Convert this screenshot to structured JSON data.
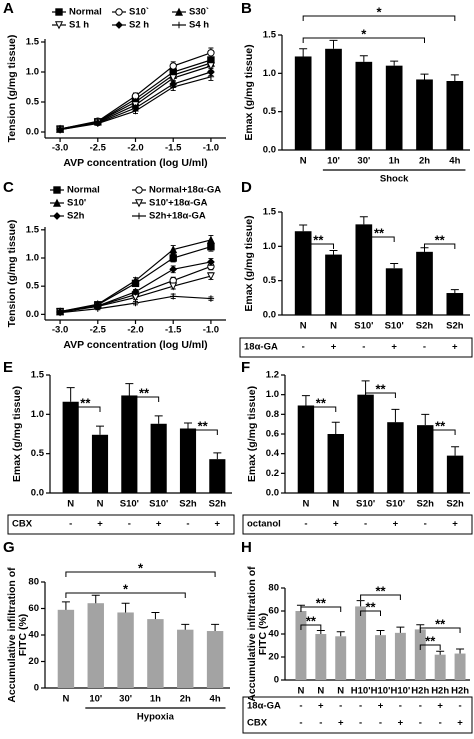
{
  "chart_data": [
    {
      "panel": "A",
      "type": "line",
      "xlabel": "AVP concentration (log U/ml)",
      "ylabel": "Tension (g/mg tissue)",
      "x": [
        -3,
        -2.5,
        -2,
        -1.5,
        -1
      ],
      "xlim": [
        -3.2,
        -0.8
      ],
      "xticks": [
        {
          "value": -3,
          "label": "-3.0"
        },
        -2.5,
        {
          "value": -2,
          "label": "-2.0"
        },
        -1.5,
        {
          "value": -1,
          "label": "-1.0"
        }
      ],
      "ylim": [
        -0.1,
        1.55
      ],
      "yticks": [
        {
          "value": 0,
          "label": "0.0"
        },
        0.5,
        {
          "value": 1,
          "label": "1.0"
        },
        1.5
      ],
      "series": [
        {
          "name": "Normal",
          "color": "#000000",
          "marker": "square",
          "values": [
            0.05,
            0.17,
            0.55,
            1.0,
            1.2
          ],
          "errors": [
            0.02,
            0.03,
            0.05,
            0.07,
            0.08
          ]
        },
        {
          "name": "S10`",
          "color": "#000000",
          "marker": "circle-open",
          "values": [
            0.05,
            0.18,
            0.6,
            1.1,
            1.32
          ],
          "errors": [
            0.02,
            0.03,
            0.05,
            0.07,
            0.08
          ]
        },
        {
          "name": "S30`",
          "color": "#000000",
          "marker": "triangle",
          "values": [
            0.05,
            0.17,
            0.5,
            0.95,
            1.15
          ],
          "errors": [
            0.02,
            0.03,
            0.05,
            0.06,
            0.07
          ]
        },
        {
          "name": "S1 h",
          "color": "#000000",
          "marker": "tri-down-open",
          "values": [
            0.04,
            0.16,
            0.45,
            0.9,
            1.1
          ],
          "errors": [
            0.02,
            0.03,
            0.05,
            0.06,
            0.07
          ]
        },
        {
          "name": "S2 h",
          "color": "#000000",
          "marker": "diamond",
          "values": [
            0.04,
            0.15,
            0.4,
            0.8,
            1.0
          ],
          "errors": [
            0.02,
            0.03,
            0.04,
            0.06,
            0.06
          ]
        },
        {
          "name": "S4 h",
          "color": "#000000",
          "marker": "plus",
          "values": [
            0.04,
            0.14,
            0.35,
            0.75,
            0.92
          ],
          "errors": [
            0.02,
            0.03,
            0.04,
            0.06,
            0.06
          ]
        }
      ]
    },
    {
      "panel": "B",
      "type": "bar",
      "ylabel": "Emax (g/mg tissue)",
      "xlabel": "Shock",
      "color": "#000000",
      "categories": [
        "N",
        "10'",
        "30'",
        "1h",
        "2h",
        "4h"
      ],
      "values": [
        1.22,
        1.32,
        1.15,
        1.1,
        0.92,
        0.9
      ],
      "errors": [
        0.1,
        0.11,
        0.08,
        0.06,
        0.07,
        0.08
      ],
      "ylim": [
        0,
        1.5
      ],
      "yticks": [
        {
          "value": 0,
          "label": "0.0"
        },
        0.5,
        {
          "value": 1,
          "label": "1.0"
        },
        1.5
      ],
      "annotations": [
        "*",
        "*"
      ]
    },
    {
      "panel": "C",
      "type": "line",
      "xlabel": "AVP concentration (log U/ml)",
      "ylabel": "Tension (g/mg tissue)",
      "x": [
        -3,
        -2.5,
        -2,
        -1.5,
        -1
      ],
      "xlim": [
        -3.2,
        -0.8
      ],
      "xticks": [
        {
          "value": -3,
          "label": "-3.0"
        },
        -2.5,
        {
          "value": -2,
          "label": "-2.0"
        },
        -1.5,
        {
          "value": -1,
          "label": "-1.0"
        }
      ],
      "ylim": [
        -0.1,
        1.55
      ],
      "yticks": [
        {
          "value": 0,
          "label": "0.0"
        },
        0.5,
        {
          "value": 1,
          "label": "1.0"
        },
        1.5
      ],
      "series": [
        {
          "name": "Normal",
          "color": "#000000",
          "marker": "square",
          "values": [
            0.05,
            0.17,
            0.55,
            1.0,
            1.2
          ],
          "errors": [
            0.02,
            0.03,
            0.05,
            0.07,
            0.08
          ]
        },
        {
          "name": "Normal+18α-GA",
          "color": "#000000",
          "marker": "circle-open",
          "values": [
            0.05,
            0.15,
            0.35,
            0.6,
            0.85
          ],
          "errors": [
            0.02,
            0.03,
            0.04,
            0.06,
            0.06
          ]
        },
        {
          "name": "S10'",
          "color": "#000000",
          "marker": "triangle",
          "values": [
            0.05,
            0.18,
            0.6,
            1.15,
            1.32
          ],
          "errors": [
            0.02,
            0.03,
            0.05,
            0.07,
            0.08
          ]
        },
        {
          "name": "S10'+18α-GA",
          "color": "#000000",
          "marker": "tri-down-open",
          "values": [
            0.04,
            0.14,
            0.3,
            0.5,
            0.68
          ],
          "errors": [
            0.02,
            0.03,
            0.04,
            0.05,
            0.06
          ]
        },
        {
          "name": "S2h",
          "color": "#000000",
          "marker": "diamond",
          "values": [
            0.04,
            0.15,
            0.4,
            0.8,
            0.93
          ],
          "errors": [
            0.02,
            0.03,
            0.04,
            0.06,
            0.06
          ]
        },
        {
          "name": "S2h+18α-GA",
          "color": "#000000",
          "marker": "plus",
          "values": [
            0.03,
            0.1,
            0.2,
            0.32,
            0.28
          ],
          "errors": [
            0.01,
            0.02,
            0.03,
            0.04,
            0.03
          ]
        }
      ]
    },
    {
      "panel": "D",
      "type": "bar",
      "ylabel": "Emax (g/mg tissue)",
      "color": "#000000",
      "categories": [
        "N",
        "N",
        "S10'",
        "S10'",
        "S2h",
        "S2h"
      ],
      "values": [
        1.22,
        0.88,
        1.32,
        0.68,
        0.92,
        0.32
      ],
      "errors": [
        0.09,
        0.06,
        0.11,
        0.07,
        0.06,
        0.05
      ],
      "ylim": [
        0,
        1.5
      ],
      "yticks": [
        {
          "value": 0,
          "label": "0.0"
        },
        0.5,
        {
          "value": 1,
          "label": "1.0"
        },
        1.5
      ],
      "annotations": [
        "**",
        "**",
        "**"
      ],
      "treatments": [
        {
          "name": "18α-GA",
          "signs": [
            "-",
            "+",
            "-",
            "+",
            "-",
            "+"
          ]
        }
      ]
    },
    {
      "panel": "E",
      "type": "bar",
      "ylabel": "Emax (g/mg tissue)",
      "color": "#000000",
      "categories": [
        "N",
        "N",
        "S10'",
        "S10'",
        "S2h",
        "S2h"
      ],
      "values": [
        1.16,
        0.74,
        1.24,
        0.88,
        0.82,
        0.43
      ],
      "errors": [
        0.18,
        0.11,
        0.15,
        0.1,
        0.07,
        0.08
      ],
      "ylim": [
        0,
        1.5
      ],
      "yticks": [
        {
          "value": 0,
          "label": "0.0"
        },
        0.5,
        {
          "value": 1,
          "label": "1.0"
        },
        1.5
      ],
      "annotations": [
        "**",
        "**",
        "**"
      ],
      "treatments": [
        {
          "name": "CBX",
          "signs": [
            "-",
            "+",
            "-",
            "+",
            "-",
            "+"
          ]
        }
      ]
    },
    {
      "panel": "F",
      "type": "bar",
      "ylabel": "Emax (g/mg tissue)",
      "color": "#000000",
      "categories": [
        "N",
        "N",
        "S10'",
        "S10'",
        "S2h",
        "S2h"
      ],
      "values": [
        0.89,
        0.6,
        1.0,
        0.72,
        0.69,
        0.38
      ],
      "errors": [
        0.1,
        0.12,
        0.14,
        0.13,
        0.11,
        0.09
      ],
      "ylim": [
        0,
        1.2
      ],
      "yticks": [
        {
          "value": 0,
          "label": "0.0"
        },
        0.2,
        0.4,
        0.6,
        0.8,
        {
          "value": 1,
          "label": "1.0"
        },
        1.2
      ],
      "annotations": [
        "**",
        "**",
        "**"
      ],
      "treatments": [
        {
          "name": "octanol",
          "signs": [
            "-",
            "+",
            "-",
            "+",
            "-",
            "+"
          ]
        }
      ]
    },
    {
      "panel": "G",
      "type": "bar",
      "ylabel": [
        "Accumulative infiltration of",
        "FITC (%)"
      ],
      "xlabel": "Hypoxia",
      "color": "#a3a3a3",
      "categories": [
        "N",
        "10'",
        "30'",
        "1h",
        "2h",
        "4h"
      ],
      "values": [
        59,
        64,
        57,
        52,
        44,
        43
      ],
      "errors": [
        6,
        6,
        7,
        5,
        4,
        5
      ],
      "ylim": [
        0,
        80
      ],
      "yticks": [
        0,
        20,
        40,
        60,
        80
      ],
      "annotations": [
        "*",
        "*"
      ]
    },
    {
      "panel": "H",
      "type": "bar",
      "ylabel": [
        "Accumulative infiltration of",
        "FITC (%)"
      ],
      "color": "#a3a3a3",
      "categories": [
        "N",
        "N",
        "N",
        "H10'",
        "H10'",
        "H10'",
        "H2h",
        "H2h",
        "H2h"
      ],
      "values": [
        60,
        40,
        38,
        64,
        39,
        41,
        44,
        22,
        23
      ],
      "errors": [
        5,
        3,
        4,
        5,
        4,
        5,
        4,
        3,
        4
      ],
      "ylim": [
        0,
        80
      ],
      "yticks": [
        0,
        20,
        40,
        60,
        80
      ],
      "annotations": [
        "**",
        "**",
        "**",
        "**",
        "**",
        "**"
      ],
      "treatments": [
        {
          "name": "18α-GA",
          "signs": [
            "-",
            "+",
            "-",
            "-",
            "+",
            "-",
            "-",
            "+",
            "-"
          ]
        },
        {
          "name": "CBX",
          "signs": [
            "-",
            "-",
            "+",
            "-",
            "-",
            "+",
            "-",
            "-",
            "+"
          ]
        }
      ]
    }
  ]
}
